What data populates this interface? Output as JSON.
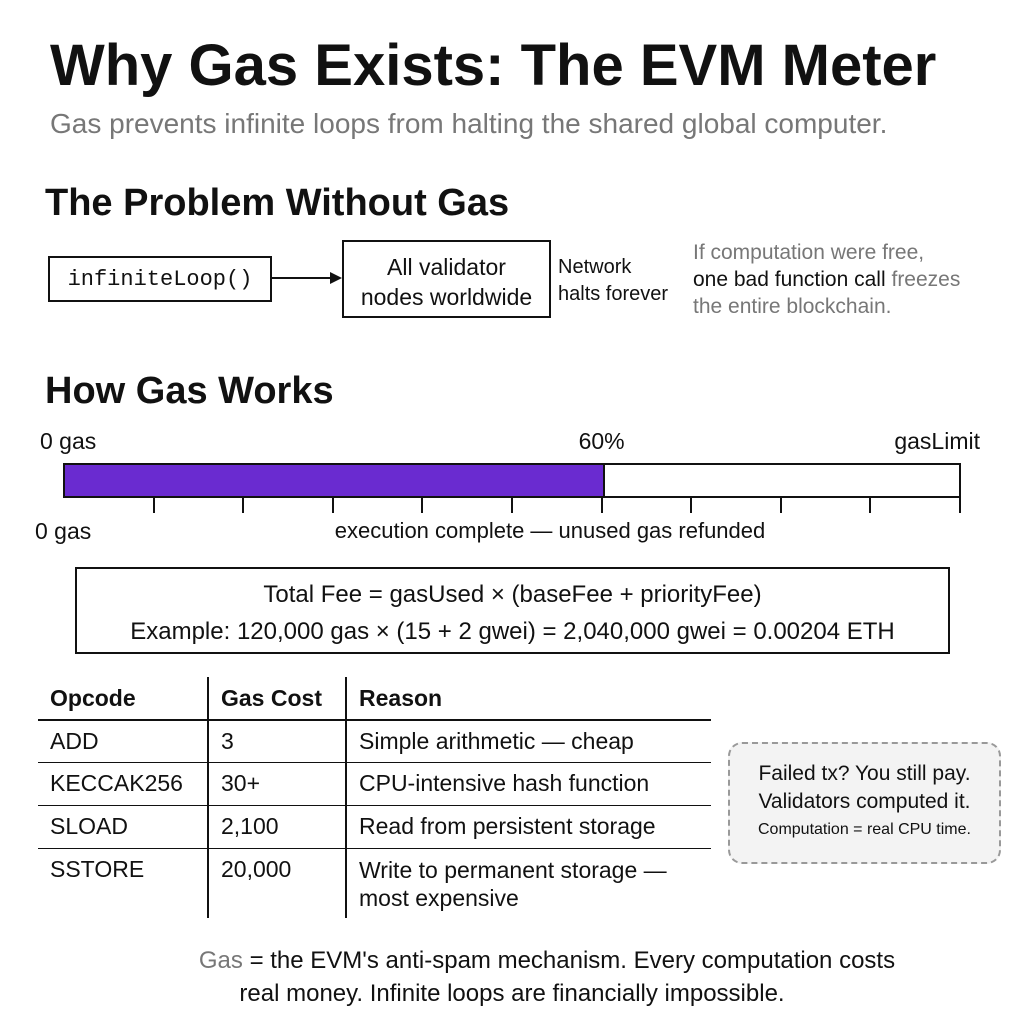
{
  "header": {
    "title": "Why Gas Exists: The EVM Meter",
    "subtitle": "Gas prevents infinite loops from halting the shared global computer."
  },
  "problem": {
    "heading": "The Problem Without Gas",
    "nodes": [
      {
        "label": "infiniteLoop()"
      },
      {
        "label": [
          "All validator",
          "nodes worldwide"
        ]
      }
    ],
    "outcome": [
      "Network",
      "halts forever"
    ],
    "note": {
      "line1": "If computation were free,",
      "line2_dark": "one bad function call",
      "line2_gray": "freezes",
      "line3": "the entire blockchain."
    }
  },
  "gas_meter": {
    "heading": "How Gas Works",
    "start_label": "0 gas",
    "end_label": "gasLimit",
    "value": 60,
    "value_label": "60%",
    "range": [
      0,
      100
    ],
    "ticks": [
      10,
      20,
      30,
      40,
      50,
      60,
      70,
      80,
      90,
      100
    ],
    "bottom_start_label": "0 gas",
    "bottom_note": "execution complete — unused gas refunded",
    "color": "#6a2bd0"
  },
  "formula": {
    "line1": "Total Fee = gasUsed × (baseFee + priorityFee)",
    "line2": "Example: 120,000 gas × (15 + 2 gwei) = 2,040,000 gwei = 0.00204 ETH"
  },
  "table": {
    "header": [
      "Opcode",
      "Gas Cost",
      "Reason"
    ],
    "rows": [
      [
        "ADD",
        "3",
        "Simple arithmetic — cheap"
      ],
      [
        "KECCAK256",
        "30+",
        "CPU-intensive hash function"
      ],
      [
        "SLOAD",
        "2,100",
        "Read from persistent storage"
      ],
      [
        "SSTORE",
        "20,000",
        "Write to permanent storage — most expensive"
      ]
    ]
  },
  "callout": [
    "Failed tx? You still pay.",
    "Validators computed it.",
    "Computation = real CPU time."
  ],
  "footer": {
    "lead": "Gas",
    "line1": "= the EVM's anti-spam mechanism. Every computation costs",
    "line2": "real money. Infinite loops are financially impossible."
  }
}
